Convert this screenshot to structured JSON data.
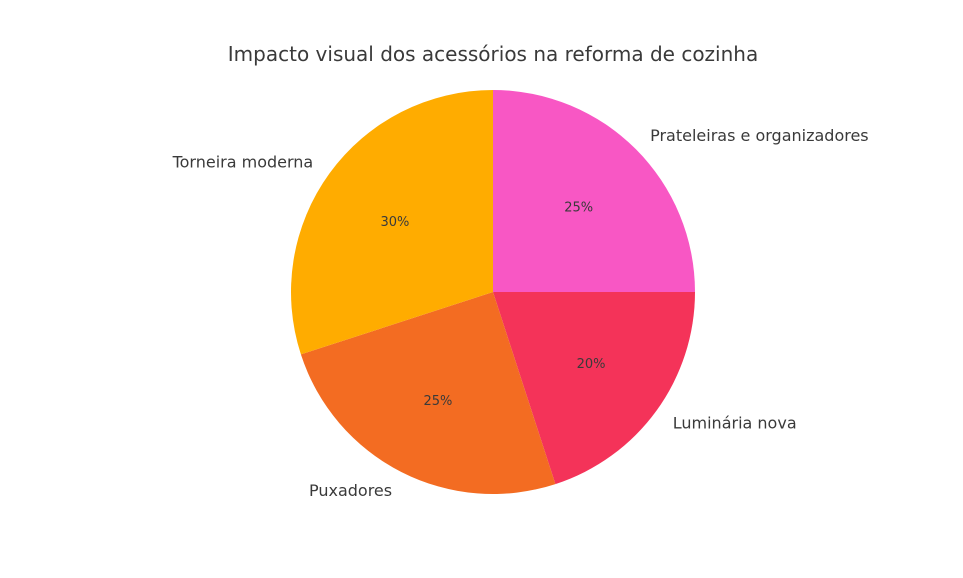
{
  "chart_data": {
    "type": "pie",
    "title": "Impacto visual dos acessórios na reforma de cozinha",
    "slices": [
      {
        "label": "Prateleiras e organizadores",
        "value": 25,
        "pct_text": "25%",
        "color": "#f857c4"
      },
      {
        "label": "Luminária nova",
        "value": 20,
        "pct_text": "20%",
        "color": "#f43359"
      },
      {
        "label": "Puxadores",
        "value": 25,
        "pct_text": "25%",
        "color": "#f36c22"
      },
      {
        "label": "Torneira moderna",
        "value": 30,
        "pct_text": "30%",
        "color": "#ffac00"
      }
    ],
    "start_angle_deg": 90,
    "direction": "clockwise"
  }
}
